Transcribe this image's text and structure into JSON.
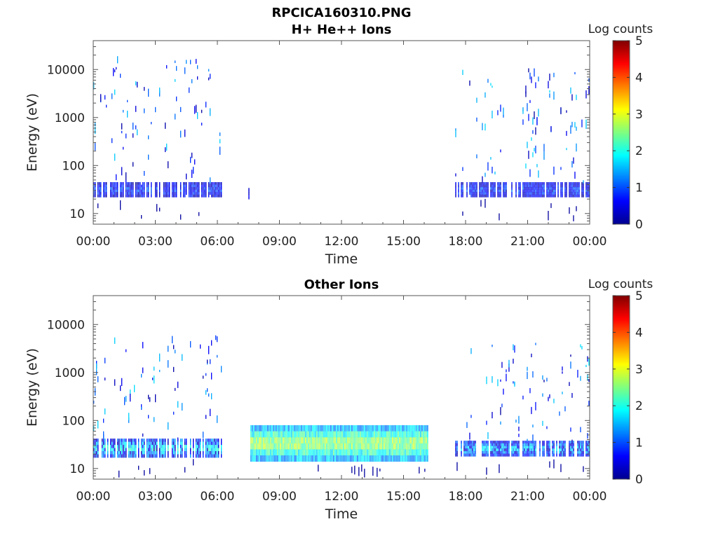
{
  "figure": {
    "main_title": "RPCICA160310.PNG"
  },
  "chart_data": [
    {
      "type": "heatmap",
      "title": "H+ He++ Ions",
      "xlabel": "Time",
      "ylabel": "Energy (eV)",
      "x_tick_labels": [
        "00:00",
        "03:00",
        "06:00",
        "09:00",
        "12:00",
        "15:00",
        "18:00",
        "21:00",
        "00:00"
      ],
      "x_ticks_hours": [
        0,
        3,
        6,
        9,
        12,
        15,
        18,
        21,
        24
      ],
      "xlim_hours": [
        0,
        24
      ],
      "y_scale": "log",
      "y_tick_labels": [
        "10",
        "100",
        "1000",
        "10000"
      ],
      "y_ticks": [
        10,
        100,
        1000,
        10000
      ],
      "ylim": [
        6,
        40000
      ],
      "colorbar": {
        "label": "Log counts",
        "tick_labels": [
          "0",
          "1",
          "2",
          "3",
          "4",
          "5"
        ],
        "range": [
          0,
          5
        ],
        "colormap": "jet"
      },
      "data_intervals": [
        {
          "start_hour": 0.0,
          "end_hour": 6.2,
          "band_low_eV": 22,
          "band_high_eV": 45,
          "band_log_counts": 0.9,
          "sparse_max_eV": 20000
        },
        {
          "start_hour": 7.5,
          "end_hour": 7.6,
          "band_low_eV": 20,
          "band_high_eV": 38,
          "band_log_counts": 0.6,
          "sparse_max_eV": 38
        },
        {
          "start_hour": 17.5,
          "end_hour": 23.95,
          "band_low_eV": 22,
          "band_high_eV": 45,
          "band_log_counts": 0.9,
          "sparse_max_eV": 12000
        }
      ]
    },
    {
      "type": "heatmap",
      "title": "Other Ions",
      "xlabel": "Time",
      "ylabel": "Energy (eV)",
      "x_tick_labels": [
        "00:00",
        "03:00",
        "06:00",
        "09:00",
        "12:00",
        "15:00",
        "18:00",
        "21:00",
        "00:00"
      ],
      "x_ticks_hours": [
        0,
        3,
        6,
        9,
        12,
        15,
        18,
        21,
        24
      ],
      "xlim_hours": [
        0,
        24
      ],
      "y_scale": "log",
      "y_tick_labels": [
        "10",
        "100",
        "1000",
        "10000"
      ],
      "y_ticks": [
        10,
        100,
        1000,
        10000
      ],
      "ylim": [
        6,
        40000
      ],
      "colorbar": {
        "label": "Log counts",
        "tick_labels": [
          "0",
          "1",
          "2",
          "3",
          "4",
          "5"
        ],
        "range": [
          0,
          5
        ],
        "colormap": "jet"
      },
      "data_intervals": [
        {
          "start_hour": 0.0,
          "end_hour": 6.2,
          "band_low_eV": 17,
          "band_high_eV": 42,
          "band_log_counts": 2.0,
          "sparse_max_eV": 6000
        },
        {
          "start_hour": 7.6,
          "end_hour": 16.2,
          "band_low_eV": 14,
          "band_high_eV": 80,
          "band_log_counts": 2.8,
          "sparse_max_eV": 80
        },
        {
          "start_hour": 17.5,
          "end_hour": 23.95,
          "band_low_eV": 18,
          "band_high_eV": 38,
          "band_log_counts": 1.7,
          "sparse_max_eV": 4500
        }
      ]
    }
  ]
}
